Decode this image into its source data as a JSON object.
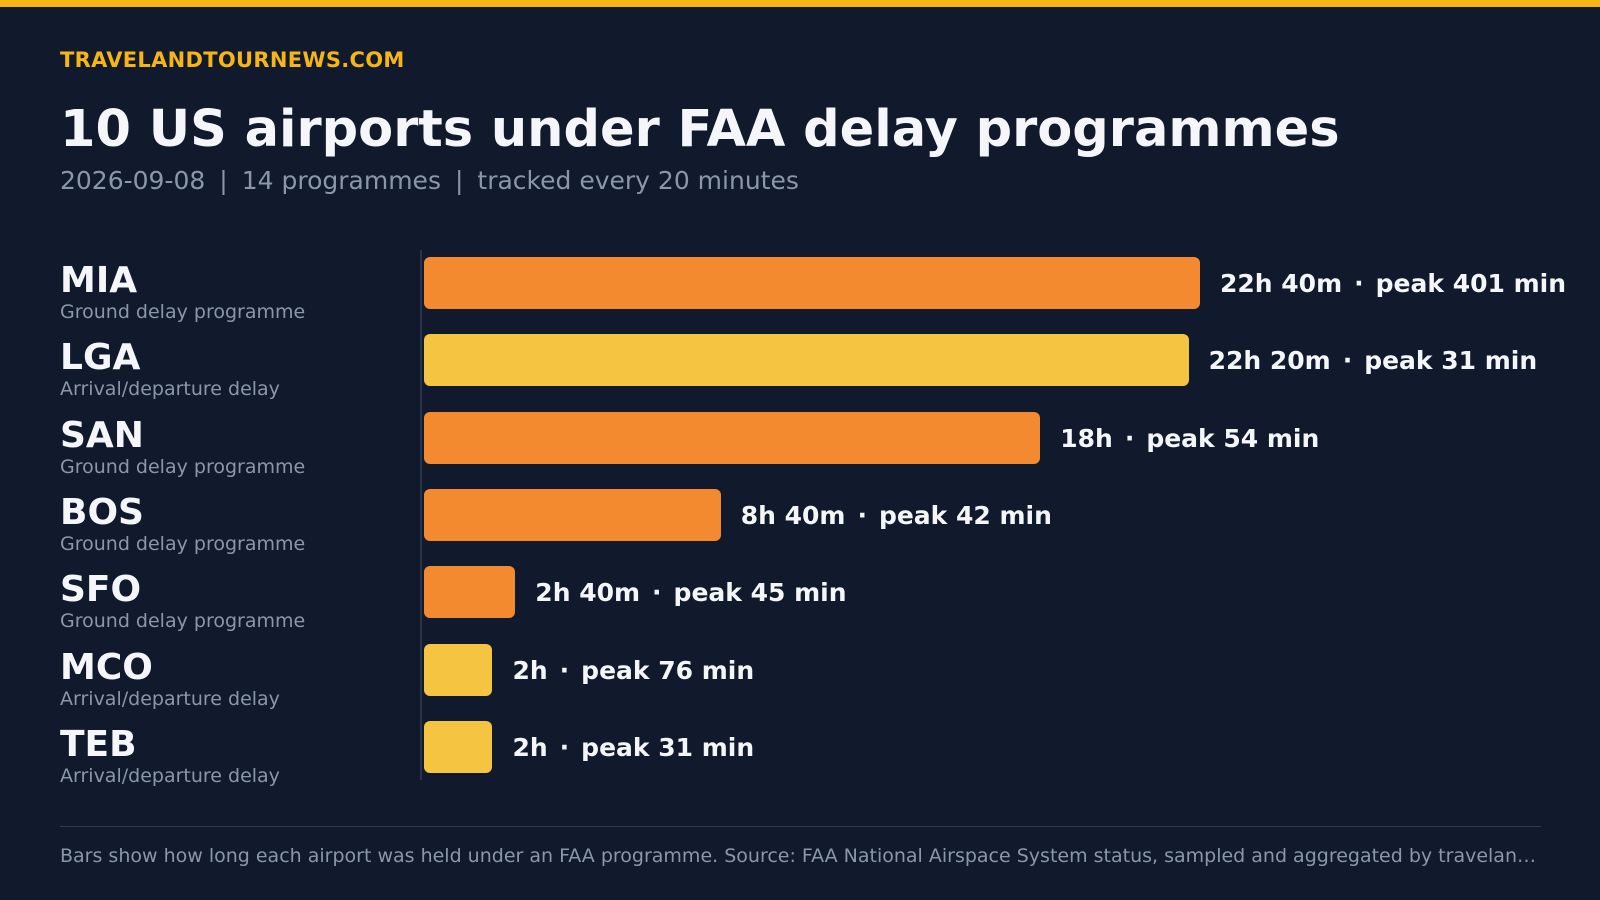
{
  "header": {
    "brand": "TRAVELANDTOURNEWS.COM",
    "title": "10 US airports under FAA delay programmes",
    "subtitle": {
      "date": "2026-09-08",
      "separator": "|",
      "programmes": "14 programmes",
      "frequency": "tracked every 20 minutes"
    }
  },
  "colors": {
    "background": "#111a2c",
    "accent": "#f6b417",
    "ground_delay": "#f38a30",
    "arrival_departure_delay": "#f5c542",
    "muted_text": "#8a97ab"
  },
  "chart_data": {
    "type": "bar",
    "orientation": "horizontal",
    "categories": [
      "MIA",
      "LGA",
      "SAN",
      "BOS",
      "SFO",
      "MCO",
      "TEB"
    ],
    "programme_types": [
      "Ground delay programme",
      "Arrival/departure delay",
      "Ground delay programme",
      "Ground delay programme",
      "Ground delay programme",
      "Arrival/departure delay",
      "Arrival/departure delay"
    ],
    "duration_hours": [
      22.667,
      22.333,
      18,
      8.667,
      2.667,
      2,
      2
    ],
    "duration_labels": [
      "22h 40m",
      "22h 20m",
      "18h",
      "8h 40m",
      "2h 40m",
      "2h",
      "2h"
    ],
    "peak_minutes": [
      401,
      31,
      54,
      42,
      45,
      76,
      31
    ],
    "peak_labels": [
      "peak 401 min",
      "peak 31 min",
      "peak 54 min",
      "peak 42 min",
      "peak 45 min",
      "peak 76 min",
      "peak 31 min"
    ],
    "label_separator": "·",
    "xlim": [
      0,
      22.667
    ],
    "grid": false,
    "legend": "none"
  },
  "footer": {
    "note": "Bars show how long each airport was held under an FAA programme. Source: FAA National Airspace System status, sampled and aggregated by travelandtournews.com"
  }
}
